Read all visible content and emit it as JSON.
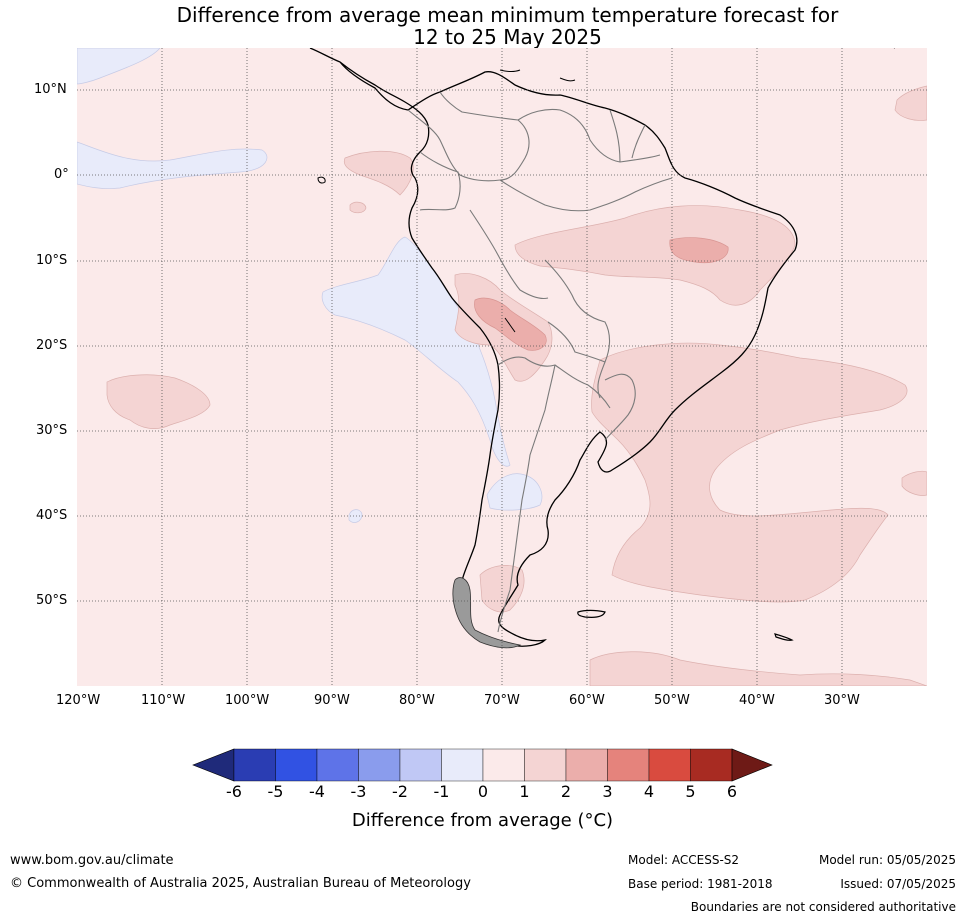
{
  "title": {
    "line1": "Difference from average mean minimum temperature forecast for",
    "line2": "12 to 25 May 2025"
  },
  "map": {
    "region": "South America",
    "lat_labels": [
      "10°N",
      "0°",
      "10°S",
      "20°S",
      "30°S",
      "40°S",
      "50°S"
    ],
    "lon_labels": [
      "120°W",
      "110°W",
      "100°W",
      "90°W",
      "80°W",
      "70°W",
      "60°W",
      "50°W",
      "40°W",
      "30°W"
    ],
    "colors": {
      "below_1": "#e8ebfa",
      "0_to_1": "#fbeaea",
      "1_to_2": "#f4d4d3",
      "2_to_3": "#ebaeab"
    }
  },
  "colorbar": {
    "ticks": [
      "-6",
      "-5",
      "-4",
      "-3",
      "-2",
      "-1",
      "0",
      "1",
      "2",
      "3",
      "4",
      "5",
      "6"
    ],
    "colors": [
      "#1f2a7a",
      "#2a3db3",
      "#3152e3",
      "#5e73e8",
      "#8a9ced",
      "#c0c8f5",
      "#e8ebfa",
      "#fbeaea",
      "#f4d4d3",
      "#ebaeab",
      "#e5837c",
      "#d94b3f",
      "#a82b22",
      "#6e1a16"
    ],
    "label": "Difference from average (°C)"
  },
  "footer": {
    "website": "www.bom.gov.au/climate",
    "copyright": "© Commonwealth of Australia 2025, Australian Bureau of Meteorology",
    "model": "Model: ACCESS-S2",
    "base_period": "Base period: 1981-2018",
    "model_run": "Model run: 05/05/2025",
    "issued": "Issued: 07/05/2025",
    "disclaimer": "Boundaries are not considered authoritative"
  }
}
